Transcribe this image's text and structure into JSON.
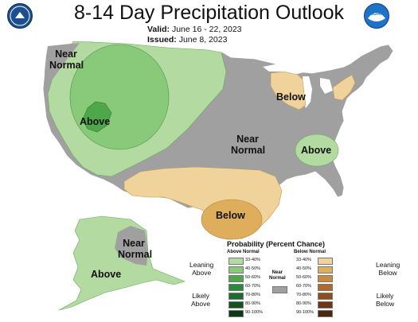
{
  "header": {
    "title": "8-14 Day Precipitation Outlook",
    "valid_label": "Valid:",
    "valid_value": "June 16 - 22, 2023",
    "issued_label": "Issued:",
    "issued_value": "June 8, 2023"
  },
  "logos": {
    "left": "commerce-department-seal",
    "right": "noaa-logo",
    "right_text": "NOAA"
  },
  "map_labels": {
    "nw": "Near\nNormal",
    "west_above": "Above",
    "great_lakes": "Below",
    "central": "Near\nNormal",
    "ohio_above": "Above",
    "texas": "Below",
    "alaska_near": "Near\nNormal",
    "alaska_above": "Above"
  },
  "colors": {
    "near_normal": "#a0a0a0",
    "above_33_40": "#b3dba1",
    "above_40_50": "#89c97a",
    "above_50_60": "#4ea84b",
    "above_60_70": "#2a8a3b",
    "above_70_80": "#1b6c2e",
    "above_80_90": "#145223",
    "above_90_100": "#0c3816",
    "below_33_40": "#efd39a",
    "below_40_50": "#dfae5d",
    "below_50_60": "#c98b3c",
    "below_60_70": "#b06a2c",
    "below_70_80": "#8e4e20",
    "below_80_90": "#6d3717",
    "below_90_100": "#4a2510",
    "ocean": "#ffffff",
    "border": "#ffffff"
  },
  "legend": {
    "title": "Probability (Percent Chance)",
    "above_head": "Above Normal",
    "below_head": "Below Normal",
    "near_head": "Near\nNormal",
    "ranges": [
      "33-40%",
      "40-50%",
      "50-60%",
      "60-70%",
      "70-80%",
      "80-90%",
      "90-100%"
    ],
    "leaning_above": "Leaning\nAbove",
    "likely_above": "Likely\nAbove",
    "leaning_below": "Leaning\nBelow",
    "likely_below": "Likely\nBelow"
  }
}
